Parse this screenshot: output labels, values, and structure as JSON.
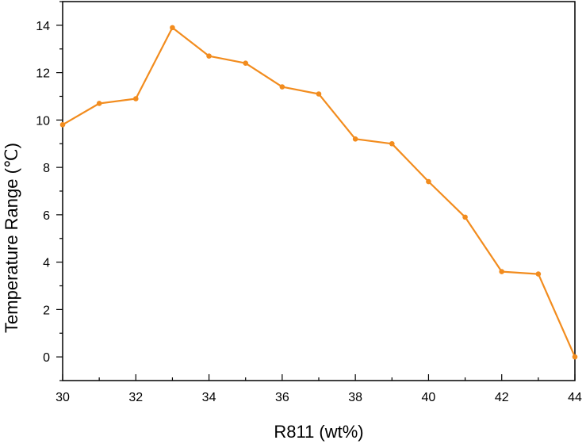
{
  "chart_data": {
    "type": "line",
    "xlabel": "R811 (wt%)",
    "ylabel": "Temperature Range (℃)",
    "xlim": [
      30,
      44
    ],
    "ylim": [
      -1,
      15
    ],
    "xticks": [
      30,
      32,
      34,
      36,
      38,
      40,
      42,
      44
    ],
    "yticks": [
      0,
      2,
      4,
      6,
      8,
      10,
      12,
      14
    ],
    "grid": false,
    "legend": "none",
    "color": "#F28C1E",
    "series": [
      {
        "x": [
          30,
          31,
          32,
          33,
          34,
          35,
          36,
          37,
          38,
          39,
          40,
          41,
          42,
          43,
          44
        ],
        "values": [
          9.8,
          10.7,
          10.9,
          13.9,
          12.7,
          12.4,
          11.4,
          11.1,
          9.2,
          9.0,
          7.4,
          5.9,
          3.6,
          3.5,
          0.0
        ]
      }
    ]
  }
}
